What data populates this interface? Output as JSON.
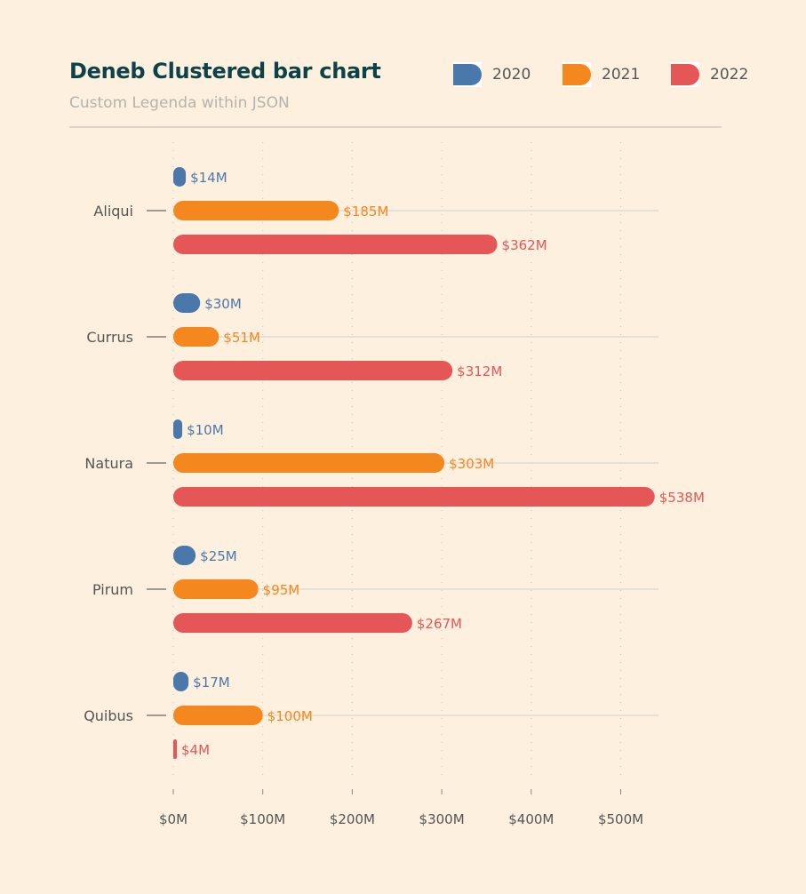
{
  "header": {
    "title": "Deneb Clustered bar chart",
    "subtitle": "Custom Legenda within JSON"
  },
  "legend": [
    {
      "label": "2020",
      "color": "#4a78aa"
    },
    {
      "label": "2021",
      "color": "#f5871f"
    },
    {
      "label": "2022",
      "color": "#e55757"
    }
  ],
  "chart_data": {
    "type": "bar",
    "orientation": "horizontal",
    "title": "Deneb Clustered bar chart",
    "subtitle": "Custom Legenda within JSON",
    "categories": [
      "Aliqui",
      "Currus",
      "Natura",
      "Pirum",
      "Quibus"
    ],
    "series": [
      {
        "name": "2020",
        "color": "#4a78aa",
        "values": [
          14,
          30,
          10,
          25,
          17
        ],
        "labels": [
          "$14M",
          "$30M",
          "$10M",
          "$25M",
          "$17M"
        ]
      },
      {
        "name": "2021",
        "color": "#f5871f",
        "values": [
          185,
          51,
          303,
          95,
          100
        ],
        "labels": [
          "$185M",
          "$51M",
          "$303M",
          "$95M",
          "$100M"
        ]
      },
      {
        "name": "2022",
        "color": "#e55757",
        "values": [
          362,
          312,
          538,
          267,
          4
        ],
        "labels": [
          "$362M",
          "$312M",
          "$538M",
          "$267M",
          "$4M"
        ]
      }
    ],
    "x_ticks": [
      0,
      100,
      200,
      300,
      400,
      500
    ],
    "x_tick_labels": [
      "$0M",
      "$100M",
      "$200M",
      "$300M",
      "$400M",
      "$500M"
    ],
    "xlim": [
      0,
      540
    ],
    "xlabel": "",
    "ylabel": "",
    "grid": true,
    "legend_position": "top-right"
  }
}
